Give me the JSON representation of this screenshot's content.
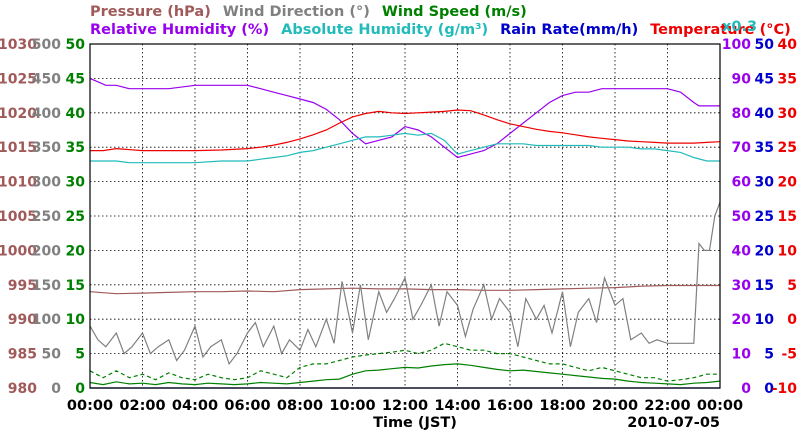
{
  "chart_data": {
    "type": "line",
    "title_rows": [
      [
        {
          "key": "pressure",
          "text": "Pressure (hPa)",
          "color": "#a05a5a"
        },
        {
          "key": "wdir",
          "text": "Wind Direction (°)",
          "color": "#808080"
        },
        {
          "key": "wspd",
          "text": "Wind Speed (m/s)",
          "color": "#008000"
        }
      ],
      [
        {
          "key": "rh",
          "text": "Relative Humidity (%)",
          "color": "#9900ee"
        },
        {
          "key": "ah",
          "text": "Absolute Humidity (g/m³)",
          "color": "#22bbbb"
        },
        {
          "key": "rain",
          "text": "Rain Rate(mm/h)",
          "color": "#0000cc"
        },
        {
          "key": "temp",
          "text": "Temperature (°C)",
          "color": "#ee0000"
        }
      ]
    ],
    "multiplier_note": "x0.3",
    "xlabel": "Time (JST)",
    "date_label": "2010-07-05",
    "x_tick_labels": [
      "00:00",
      "02:00",
      "04:00",
      "06:00",
      "08:00",
      "10:00",
      "12:00",
      "14:00",
      "16:00",
      "18:00",
      "20:00",
      "22:00",
      "00:00"
    ],
    "x_range_hours": [
      0,
      24
    ],
    "grid": true,
    "axes": {
      "pressure": {
        "color": "#a05a5a",
        "min": 980,
        "max": 1030,
        "ticks": [
          "980",
          "985",
          "990",
          "995",
          "1000",
          "1005",
          "1010",
          "1015",
          "1020",
          "1025",
          "1030"
        ]
      },
      "wind_direction": {
        "color": "#808080",
        "min": 0,
        "max": 500,
        "ticks": [
          "0",
          "50",
          "100",
          "150",
          "200",
          "250",
          "300",
          "350",
          "400",
          "450",
          "500"
        ]
      },
      "wind_speed": {
        "color": "#008000",
        "min": 0,
        "max": 50,
        "ticks": [
          "0",
          "5",
          "10",
          "15",
          "20",
          "25",
          "30",
          "35",
          "40",
          "45",
          "50"
        ]
      },
      "humidity": {
        "color": "#9900ee",
        "min": 0,
        "max": 100,
        "ticks": [
          "0",
          "10",
          "20",
          "30",
          "40",
          "50",
          "60",
          "70",
          "80",
          "90",
          "100"
        ]
      },
      "rain_rate": {
        "color": "#0000cc",
        "min": 0,
        "max": 50,
        "ticks": [
          "0",
          "5",
          "10",
          "15",
          "20",
          "25",
          "30",
          "35",
          "40",
          "45",
          "50"
        ]
      },
      "temperature": {
        "color": "#ee0000",
        "min": -10,
        "max": 40,
        "ticks": [
          "-10",
          "-5",
          "0",
          "5",
          "10",
          "15",
          "20",
          "25",
          "30",
          "35",
          "40"
        ]
      }
    },
    "series": [
      {
        "name": "Pressure (hPa)",
        "axis": "pressure",
        "color": "#a05a5a",
        "x": [
          0,
          1,
          2,
          3,
          4,
          5,
          6,
          7,
          8,
          9,
          10,
          11,
          12,
          13,
          14,
          15,
          16,
          17,
          18,
          19,
          20,
          21,
          22,
          23,
          24
        ],
        "y": [
          994.0,
          993.7,
          993.8,
          993.9,
          994.0,
          994.0,
          994.1,
          994.0,
          994.3,
          994.4,
          994.5,
          994.4,
          994.4,
          994.3,
          994.3,
          994.2,
          994.2,
          994.3,
          994.4,
          994.5,
          994.6,
          994.8,
          994.9,
          994.9,
          994.9
        ]
      },
      {
        "name": "Wind Direction (°)",
        "axis": "wind_direction",
        "color": "#808080",
        "x": [
          0,
          0.3,
          0.6,
          1,
          1.3,
          1.6,
          2,
          2.3,
          2.6,
          3,
          3.3,
          3.6,
          4,
          4.3,
          4.6,
          5,
          5.3,
          5.6,
          6,
          6.3,
          6.6,
          7,
          7.3,
          7.6,
          8,
          8.3,
          8.6,
          9,
          9.3,
          9.6,
          10,
          10.3,
          10.6,
          11,
          11.3,
          11.6,
          12,
          12.3,
          12.6,
          13,
          13.3,
          13.6,
          14,
          14.3,
          14.6,
          15,
          15.3,
          15.6,
          16,
          16.3,
          16.6,
          17,
          17.3,
          17.6,
          18,
          18.3,
          18.6,
          19,
          19.3,
          19.6,
          20,
          20.3,
          20.6,
          21,
          21.3,
          21.6,
          22,
          22.5,
          23,
          23.2,
          23.4,
          23.6,
          23.8,
          24
        ],
        "y": [
          90,
          70,
          60,
          80,
          50,
          60,
          80,
          50,
          60,
          70,
          40,
          55,
          90,
          45,
          60,
          70,
          35,
          50,
          80,
          95,
          60,
          90,
          50,
          70,
          55,
          85,
          60,
          100,
          65,
          155,
          80,
          150,
          70,
          140,
          110,
          130,
          160,
          100,
          120,
          150,
          90,
          140,
          120,
          75,
          115,
          150,
          100,
          130,
          110,
          60,
          130,
          100,
          120,
          80,
          140,
          60,
          110,
          130,
          95,
          160,
          120,
          130,
          70,
          80,
          65,
          70,
          65,
          65,
          65,
          210,
          200,
          200,
          250,
          270
        ]
      },
      {
        "name": "Wind Speed (m/s)",
        "axis": "wind_speed",
        "color": "#008000",
        "x": [
          0,
          0.5,
          1,
          1.5,
          2,
          2.5,
          3,
          3.5,
          4,
          4.5,
          5,
          5.5,
          6,
          6.5,
          7,
          7.5,
          8,
          8.5,
          9,
          9.5,
          10,
          10.5,
          11,
          11.5,
          12,
          12.5,
          13,
          13.5,
          14,
          14.5,
          15,
          15.5,
          16,
          16.5,
          17,
          17.5,
          18,
          18.5,
          19,
          19.5,
          20,
          20.5,
          21,
          21.5,
          22,
          22.5,
          23,
          23.5,
          24
        ],
        "y": [
          0.8,
          0.5,
          0.9,
          0.6,
          0.7,
          0.5,
          0.8,
          0.6,
          0.5,
          0.7,
          0.6,
          0.5,
          0.6,
          0.8,
          0.7,
          0.6,
          0.8,
          1.0,
          1.2,
          1.3,
          2.0,
          2.5,
          2.6,
          2.8,
          3.0,
          2.9,
          3.2,
          3.4,
          3.5,
          3.3,
          3.0,
          2.7,
          2.5,
          2.6,
          2.4,
          2.2,
          2.0,
          1.8,
          1.6,
          1.4,
          1.3,
          1.0,
          0.8,
          0.7,
          0.6,
          0.5,
          0.7,
          0.8,
          1.0
        ]
      },
      {
        "name": "Wind Speed peak (m/s)",
        "axis": "wind_speed",
        "color": "#008000",
        "dashed": true,
        "x": [
          0,
          0.5,
          1,
          1.5,
          2,
          2.5,
          3,
          3.5,
          4,
          4.5,
          5,
          5.5,
          6,
          6.5,
          7,
          7.5,
          8,
          8.5,
          9,
          9.5,
          10,
          10.5,
          11,
          11.5,
          12,
          12.5,
          13,
          13.5,
          14,
          14.5,
          15,
          15.5,
          16,
          16.5,
          17,
          17.5,
          18,
          18.5,
          19,
          19.5,
          20,
          20.5,
          21,
          21.5,
          22,
          22.5,
          23,
          23.5,
          24
        ],
        "y": [
          2.5,
          1.5,
          2.5,
          1.5,
          2.0,
          1.2,
          2.2,
          1.5,
          1.2,
          2.0,
          1.5,
          1.2,
          1.5,
          2.5,
          2.0,
          1.5,
          3.0,
          3.5,
          3.5,
          4.0,
          4.5,
          4.8,
          5.0,
          5.2,
          5.5,
          5.0,
          5.5,
          6.5,
          6.0,
          5.5,
          5.5,
          5.0,
          5.0,
          4.5,
          4.0,
          3.5,
          3.5,
          3.0,
          2.5,
          3.0,
          2.5,
          2.0,
          1.5,
          1.5,
          1.0,
          1.2,
          1.5,
          2.0,
          2.0
        ]
      },
      {
        "name": "Relative Humidity (%)",
        "axis": "humidity",
        "color": "#9900ee",
        "x": [
          0,
          0.3,
          0.6,
          1,
          1.5,
          2,
          3,
          4,
          5,
          6,
          6.5,
          7,
          7.5,
          8,
          8.5,
          9,
          9.5,
          10,
          10.5,
          11,
          11.5,
          12,
          12.5,
          13,
          13.5,
          14,
          14.5,
          15,
          15.5,
          16,
          16.5,
          17,
          17.5,
          18,
          18.5,
          19,
          19.5,
          20,
          20.5,
          21,
          21.5,
          22,
          22.5,
          23,
          23.2,
          23.5,
          24
        ],
        "y": [
          90,
          89,
          88,
          88,
          87,
          87,
          87,
          88,
          88,
          88,
          87,
          86,
          85,
          84,
          83,
          81,
          78,
          74,
          71,
          72,
          73,
          76,
          75,
          73,
          70,
          67,
          68,
          69,
          71,
          74,
          77,
          80,
          83,
          85,
          86,
          86,
          87,
          87,
          87,
          87,
          87,
          87,
          86,
          83,
          82,
          82,
          82
        ]
      },
      {
        "name": "Absolute Humidity (g/m³)",
        "axis": "humidity",
        "color": "#22bbbb",
        "x": [
          0,
          0.5,
          1,
          1.5,
          2,
          3,
          4,
          5,
          6,
          6.5,
          7,
          7.5,
          8,
          8.5,
          9,
          9.5,
          10,
          10.5,
          11,
          11.5,
          12,
          12.5,
          13,
          13.5,
          14,
          14.5,
          15,
          15.5,
          16,
          16.5,
          17,
          17.5,
          18,
          18.5,
          19,
          19.5,
          20,
          20.5,
          21,
          21.5,
          22,
          22.5,
          23,
          23.5,
          24
        ],
        "y": [
          66,
          66,
          66,
          65.5,
          65.5,
          65.5,
          65.5,
          66,
          66,
          66.5,
          67,
          67.5,
          68.5,
          69,
          70,
          71,
          72,
          73,
          73,
          73.5,
          74,
          73.5,
          74,
          72,
          68,
          69,
          70,
          71,
          71,
          71,
          70.5,
          70.5,
          70.5,
          70.5,
          70.5,
          70,
          70,
          70,
          69.5,
          69.5,
          69,
          68.5,
          67,
          66,
          66
        ]
      },
      {
        "name": "Rain Rate(mm/h)",
        "axis": "rain_rate",
        "color": "#0000cc",
        "x": [
          0,
          24
        ],
        "y": [
          0,
          0
        ]
      },
      {
        "name": "Temperature (°C)",
        "axis": "temperature",
        "color": "#ee0000",
        "x": [
          0,
          0.5,
          1,
          2,
          3,
          4,
          5,
          6,
          6.5,
          7,
          7.5,
          8,
          8.5,
          9,
          9.5,
          10,
          10.5,
          11,
          11.5,
          12,
          12.5,
          13,
          13.5,
          14,
          14.5,
          15,
          15.5,
          16,
          16.5,
          17,
          17.5,
          18,
          18.5,
          19,
          19.5,
          20,
          20.5,
          21,
          21.5,
          22,
          22.5,
          23,
          23.5,
          24
        ],
        "y": [
          24.5,
          24.5,
          24.8,
          24.5,
          24.5,
          24.5,
          24.6,
          24.8,
          25,
          25.3,
          25.7,
          26.2,
          26.8,
          27.5,
          28.5,
          29.4,
          29.9,
          30.2,
          30.0,
          29.9,
          30.0,
          30.1,
          30.2,
          30.4,
          30.3,
          29.7,
          29.0,
          28.4,
          28.0,
          27.6,
          27.3,
          27.1,
          26.8,
          26.5,
          26.3,
          26.1,
          25.9,
          25.8,
          25.7,
          25.6,
          25.6,
          25.6,
          25.7,
          25.8
        ]
      }
    ]
  }
}
